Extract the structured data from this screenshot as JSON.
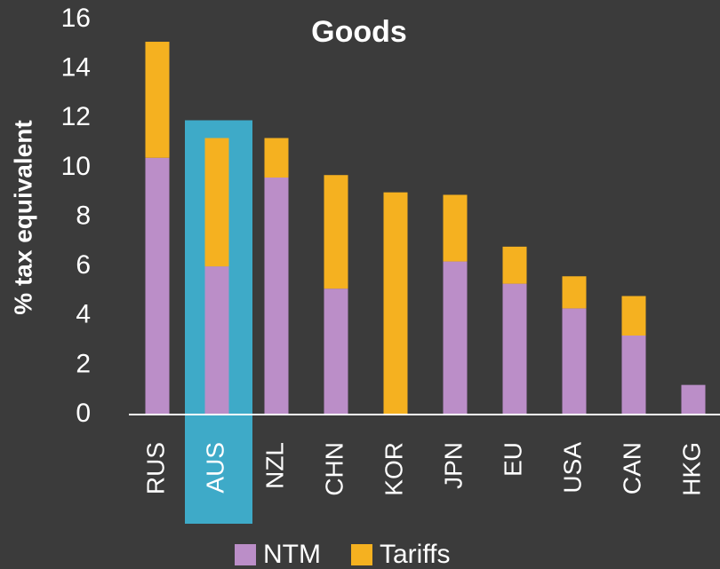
{
  "chart_data": {
    "type": "stacked_bar",
    "title": "Goods",
    "y_label": "% tax equivalent",
    "categories": [
      "RUS",
      "AUS",
      "NZL",
      "CHN",
      "KOR",
      "JPN",
      "EU",
      "USA",
      "CAN",
      "HKG"
    ],
    "series": [
      {
        "name": "NTM",
        "color": "#bb8ec8",
        "values": [
          10.4,
          6.0,
          9.6,
          5.1,
          0,
          6.2,
          5.3,
          4.3,
          3.2,
          1.2
        ]
      },
      {
        "name": "Tariffs",
        "color": "#f5b120",
        "values": [
          4.7,
          5.2,
          1.6,
          4.6,
          9.0,
          2.7,
          1.5,
          1.3,
          1.6,
          0
        ]
      }
    ],
    "highlight": "AUS",
    "highlight_color": "#3eaac8",
    "ylim": [
      0,
      16
    ],
    "yticks": [
      0,
      2,
      4,
      6,
      8,
      10,
      12,
      14,
      16
    ],
    "grid": false
  }
}
